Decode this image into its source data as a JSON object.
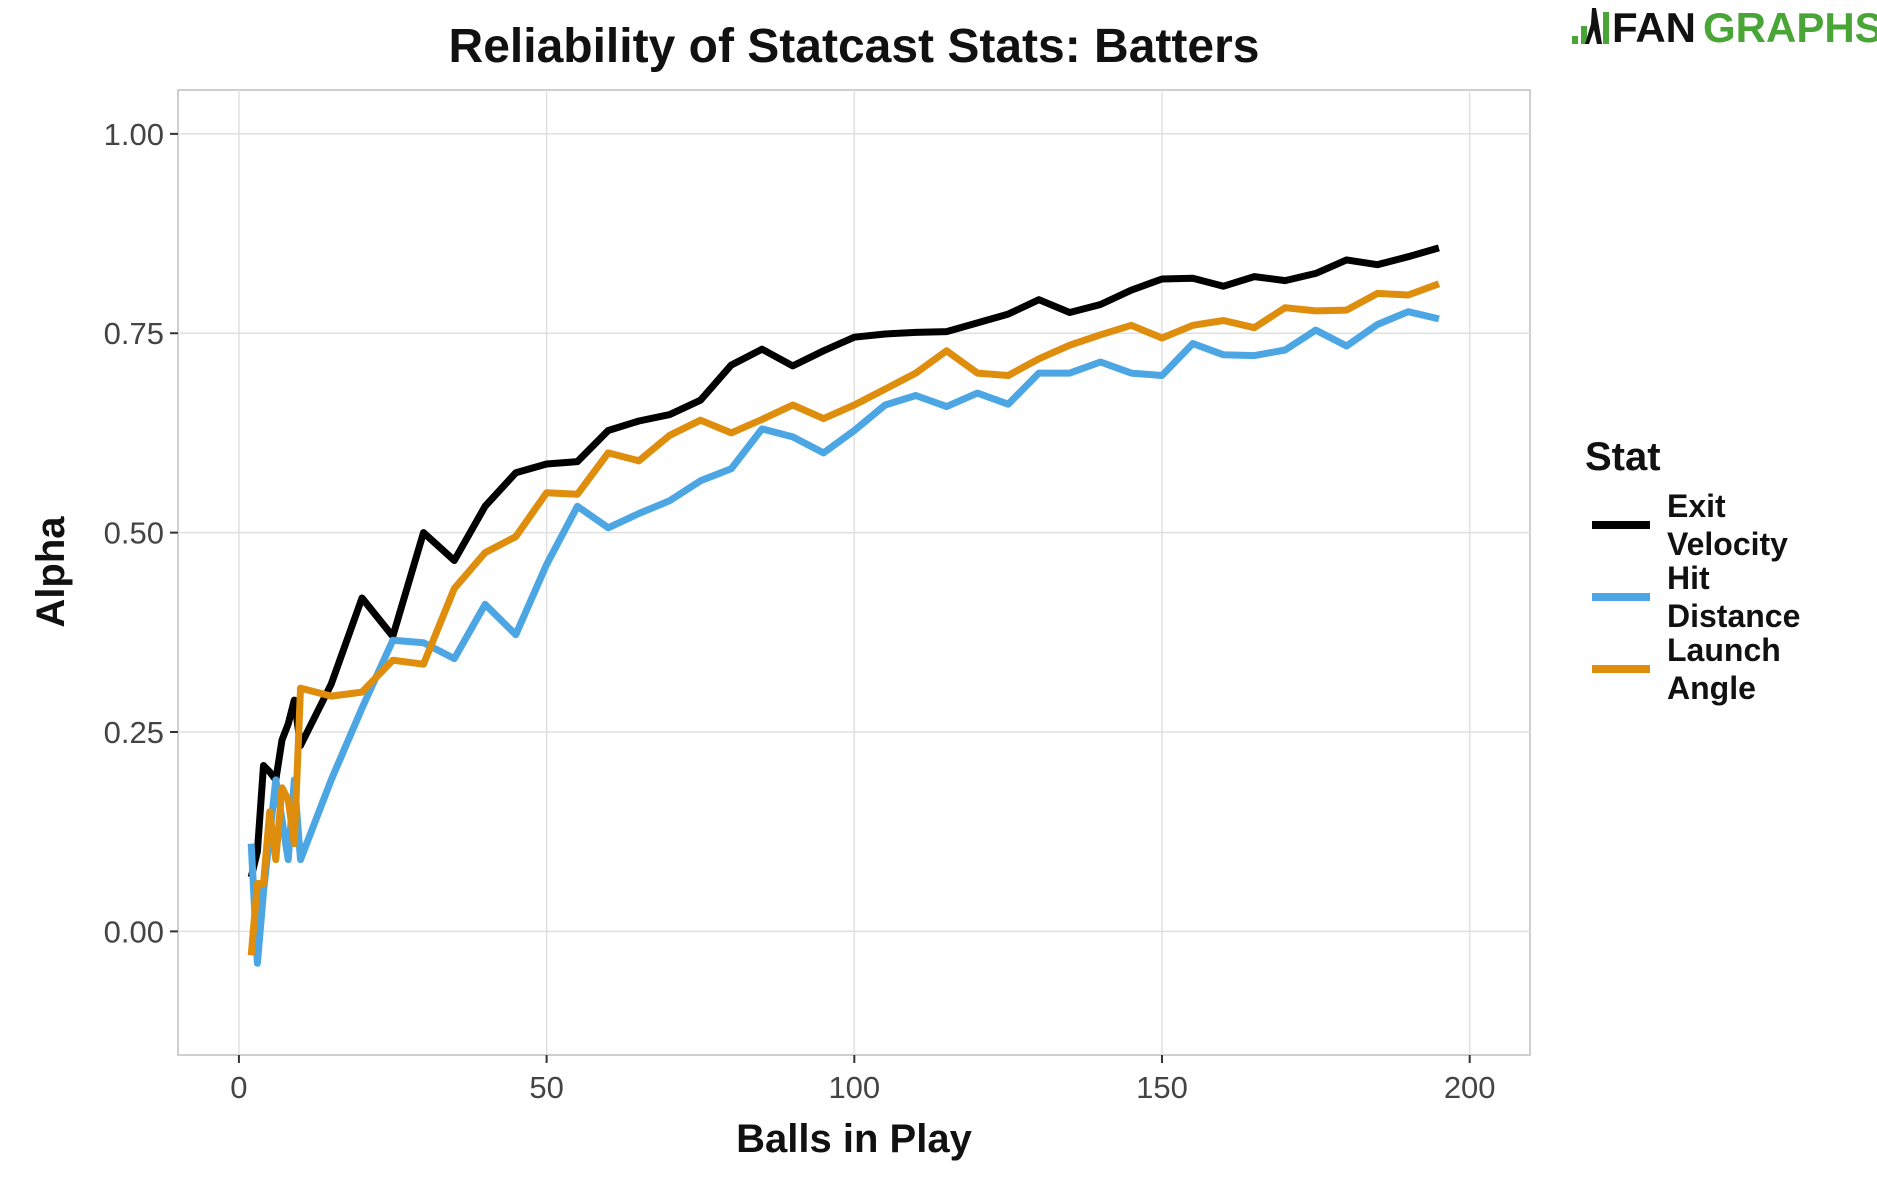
{
  "logo": {
    "text_dark": "FAN",
    "text_green": "GRAPHS",
    "green": "#4aa537"
  },
  "chart_data": {
    "type": "line",
    "title": "Reliability of Statcast Stats: Batters",
    "xlabel": "Balls in Play",
    "ylabel": "Alpha",
    "xlim": [
      -9.9,
      209.8
    ],
    "ylim": [
      -0.155,
      1.055
    ],
    "xticks": [
      0,
      50,
      100,
      150,
      200
    ],
    "xtick_labels": [
      "0",
      "50",
      "100",
      "150",
      "200"
    ],
    "yticks": [
      0,
      0.25,
      0.5,
      0.75,
      1.0
    ],
    "ytick_labels": [
      "0.00",
      "0.25",
      "0.50",
      "0.75",
      "1.00"
    ],
    "grid": true,
    "legend": {
      "title": "Stat",
      "placement": "right"
    },
    "x": [
      2,
      3,
      4,
      5,
      6,
      7,
      8,
      9,
      10,
      15,
      20,
      25,
      30,
      35,
      40,
      45,
      50,
      55,
      60,
      65,
      70,
      75,
      80,
      85,
      90,
      95,
      100,
      105,
      110,
      115,
      120,
      125,
      130,
      135,
      140,
      145,
      150,
      155,
      160,
      165,
      170,
      175,
      180,
      185,
      190,
      195
    ],
    "series": [
      {
        "name": "Exit Velocity",
        "name_lines": [
          "Exit",
          "Velocity"
        ],
        "color": "#000000",
        "values": [
          0.068,
          0.1,
          0.208,
          0.2,
          0.19,
          0.24,
          0.26,
          0.29,
          0.233,
          0.31,
          0.418,
          0.37,
          0.5,
          0.465,
          0.533,
          0.575,
          0.586,
          0.589,
          0.628,
          0.64,
          0.648,
          0.666,
          0.71,
          0.73,
          0.709,
          0.728,
          0.745,
          0.749,
          0.751,
          0.752,
          0.763,
          0.774,
          0.792,
          0.776,
          0.786,
          0.804,
          0.818,
          0.819,
          0.809,
          0.821,
          0.816,
          0.825,
          0.842,
          0.836,
          0.846,
          0.857
        ]
      },
      {
        "name": "Hit Distance",
        "name_lines": [
          "Hit",
          "Distance"
        ],
        "color": "#4ba6e3",
        "values": [
          0.11,
          -0.04,
          0.05,
          0.12,
          0.19,
          0.14,
          0.09,
          0.19,
          0.09,
          0.19,
          0.28,
          0.365,
          0.362,
          0.342,
          0.41,
          0.372,
          0.46,
          0.533,
          0.506,
          0.524,
          0.54,
          0.565,
          0.58,
          0.63,
          0.62,
          0.6,
          0.628,
          0.66,
          0.672,
          0.658,
          0.675,
          0.661,
          0.7,
          0.7,
          0.714,
          0.7,
          0.697,
          0.737,
          0.723,
          0.722,
          0.729,
          0.754,
          0.734,
          0.761,
          0.777,
          0.768
        ]
      },
      {
        "name": "Launch Angle",
        "name_lines": [
          "Launch",
          "Angle"
        ],
        "color": "#df8d0c",
        "values": [
          -0.03,
          0.06,
          0.06,
          0.15,
          0.09,
          0.18,
          0.165,
          0.11,
          0.305,
          0.295,
          0.3,
          0.34,
          0.335,
          0.43,
          0.475,
          0.495,
          0.55,
          0.548,
          0.6,
          0.59,
          0.622,
          0.641,
          0.625,
          0.642,
          0.66,
          0.643,
          0.66,
          0.68,
          0.7,
          0.728,
          0.7,
          0.697,
          0.718,
          0.735,
          0.748,
          0.76,
          0.744,
          0.76,
          0.766,
          0.757,
          0.782,
          0.778,
          0.779,
          0.8,
          0.798,
          0.812
        ]
      }
    ]
  }
}
